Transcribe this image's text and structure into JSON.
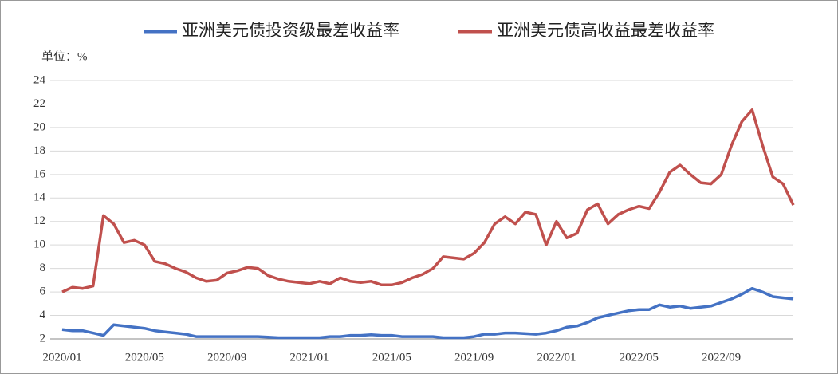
{
  "chart_data": {
    "type": "line",
    "unit_label": "单位：%",
    "x": [
      "2020/01",
      null,
      null,
      null,
      null,
      null,
      null,
      null,
      "2020/05",
      null,
      null,
      null,
      null,
      null,
      null,
      null,
      "2020/09",
      null,
      null,
      null,
      null,
      null,
      null,
      null,
      "2021/01",
      null,
      null,
      null,
      null,
      null,
      null,
      null,
      "2021/05",
      null,
      null,
      null,
      null,
      null,
      null,
      null,
      "2021/09",
      null,
      null,
      null,
      null,
      null,
      null,
      null,
      "2022/01",
      null,
      null,
      null,
      null,
      null,
      null,
      null,
      "2022/05",
      null,
      null,
      null,
      null,
      null,
      null,
      null,
      "2022/09",
      null,
      null,
      null,
      null,
      null,
      null,
      null
    ],
    "series": [
      {
        "name": "亚洲美元债投资级最差收益率",
        "color": "#4472c4",
        "values": [
          2.8,
          2.7,
          2.7,
          2.5,
          2.3,
          3.2,
          3.1,
          3.0,
          2.9,
          2.7,
          2.6,
          2.5,
          2.4,
          2.2,
          2.2,
          2.2,
          2.2,
          2.2,
          2.2,
          2.2,
          2.15,
          2.1,
          2.1,
          2.1,
          2.1,
          2.1,
          2.2,
          2.2,
          2.3,
          2.3,
          2.35,
          2.3,
          2.3,
          2.2,
          2.2,
          2.2,
          2.2,
          2.1,
          2.1,
          2.1,
          2.2,
          2.4,
          2.4,
          2.5,
          2.5,
          2.45,
          2.4,
          2.5,
          2.7,
          3.0,
          3.1,
          3.4,
          3.8,
          4.0,
          4.2,
          4.4,
          4.5,
          4.5,
          4.9,
          4.7,
          4.8,
          4.6,
          4.7,
          4.8,
          5.1,
          5.4,
          5.8,
          6.3,
          6.0,
          5.6,
          5.5,
          5.4
        ]
      },
      {
        "name": "亚洲美元债高收益最差收益率",
        "color": "#c0504d",
        "values": [
          6.0,
          6.4,
          6.3,
          6.5,
          12.5,
          11.8,
          10.2,
          10.4,
          10.0,
          8.6,
          8.4,
          8.0,
          7.7,
          7.2,
          6.9,
          7.0,
          7.6,
          7.8,
          8.1,
          8.0,
          7.4,
          7.1,
          6.9,
          6.8,
          6.7,
          6.9,
          6.7,
          7.2,
          6.9,
          6.8,
          6.9,
          6.6,
          6.6,
          6.8,
          7.2,
          7.5,
          8.0,
          9.0,
          8.9,
          8.8,
          9.3,
          10.2,
          11.8,
          12.4,
          11.8,
          12.8,
          12.6,
          10.0,
          12.0,
          10.6,
          11.0,
          13.0,
          13.5,
          11.8,
          12.6,
          13.0,
          13.3,
          13.1,
          14.5,
          16.2,
          16.8,
          16.0,
          15.3,
          15.2,
          16.0,
          18.5,
          20.5,
          21.5,
          18.5,
          15.8,
          15.2,
          13.4
        ]
      }
    ],
    "ylim": [
      2,
      24
    ],
    "yticks": [
      2,
      4,
      6,
      8,
      10,
      12,
      14,
      16,
      18,
      20,
      22,
      24
    ],
    "grid": true
  }
}
